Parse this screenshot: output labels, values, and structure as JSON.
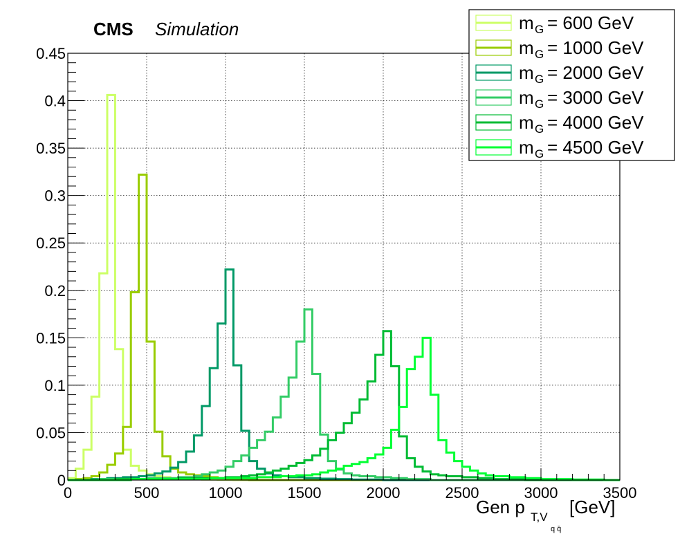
{
  "header": {
    "experiment": "CMS",
    "tag": "Simulation"
  },
  "chart_data": {
    "type": "line",
    "style": "histogram-step",
    "xlabel_main": "Gen p",
    "xlabel_sub": "T,V",
    "xlabel_subsub": "q q̄",
    "xlabel_unit": "[GeV]",
    "xlim": [
      0,
      3500
    ],
    "ylim": [
      0,
      0.45
    ],
    "grid": true,
    "legend_position": "top-right",
    "bin_width": 50,
    "x_ticks": [
      "0",
      "500",
      "1000",
      "1500",
      "2000",
      "2500",
      "3000",
      "3500"
    ],
    "x_tick_values": [
      0,
      500,
      1000,
      1500,
      2000,
      2500,
      3000,
      3500
    ],
    "y_ticks": [
      "0",
      "0.05",
      "0.1",
      "0.15",
      "0.2",
      "0.25",
      "0.3",
      "0.35",
      "0.4",
      "0.45"
    ],
    "y_tick_values": [
      0,
      0.05,
      0.1,
      0.15,
      0.2,
      0.25,
      0.3,
      0.35,
      0.4,
      0.45
    ],
    "series": [
      {
        "name": "= 600 GeV",
        "color": "#ccff66",
        "bins": [
          [
            0,
            0.002
          ],
          [
            50,
            0.012
          ],
          [
            100,
            0.032
          ],
          [
            150,
            0.088
          ],
          [
            200,
            0.218
          ],
          [
            250,
            0.406
          ],
          [
            300,
            0.138
          ],
          [
            350,
            0.032
          ],
          [
            400,
            0.015
          ],
          [
            450,
            0.01
          ],
          [
            500,
            0.006
          ],
          [
            550,
            0.004
          ],
          [
            600,
            0.003
          ],
          [
            650,
            0.002
          ],
          [
            700,
            0.0015
          ],
          [
            750,
            0.001
          ],
          [
            800,
            0.001
          ],
          [
            850,
            0.0005
          ],
          [
            900,
            0.0005
          ],
          [
            950,
            0.0003
          ],
          [
            1000,
            0.0002
          ],
          [
            1050,
            0
          ]
        ]
      },
      {
        "name": "= 1000 GeV",
        "color": "#99cc00",
        "bins": [
          [
            0,
            0
          ],
          [
            50,
            0.001
          ],
          [
            100,
            0.002
          ],
          [
            150,
            0.004
          ],
          [
            200,
            0.008
          ],
          [
            250,
            0.016
          ],
          [
            300,
            0.028
          ],
          [
            350,
            0.056
          ],
          [
            400,
            0.198
          ],
          [
            450,
            0.322
          ],
          [
            500,
            0.146
          ],
          [
            550,
            0.051
          ],
          [
            600,
            0.025
          ],
          [
            650,
            0.012
          ],
          [
            700,
            0.008
          ],
          [
            750,
            0.006
          ],
          [
            800,
            0.005
          ],
          [
            850,
            0.004
          ],
          [
            900,
            0.003
          ],
          [
            950,
            0.002
          ],
          [
            1000,
            0.0015
          ],
          [
            1050,
            0.001
          ],
          [
            1100,
            0.0005
          ],
          [
            1150,
            0
          ]
        ]
      },
      {
        "name": "= 2000 GeV",
        "color": "#009966",
        "bins": [
          [
            0,
            0
          ],
          [
            150,
            0.001
          ],
          [
            250,
            0.002
          ],
          [
            350,
            0.003
          ],
          [
            450,
            0.004
          ],
          [
            500,
            0.005
          ],
          [
            550,
            0.007
          ],
          [
            600,
            0.009
          ],
          [
            650,
            0.013
          ],
          [
            700,
            0.019
          ],
          [
            750,
            0.03
          ],
          [
            800,
            0.047
          ],
          [
            850,
            0.078
          ],
          [
            900,
            0.118
          ],
          [
            950,
            0.165
          ],
          [
            1000,
            0.222
          ],
          [
            1050,
            0.121
          ],
          [
            1100,
            0.052
          ],
          [
            1150,
            0.02
          ],
          [
            1200,
            0.012
          ],
          [
            1250,
            0.007
          ],
          [
            1300,
            0.005
          ],
          [
            1350,
            0.004
          ],
          [
            1400,
            0.003
          ],
          [
            1500,
            0.002
          ],
          [
            1600,
            0.0015
          ],
          [
            1700,
            0.001
          ],
          [
            1800,
            0.0005
          ],
          [
            2000,
            0
          ]
        ]
      },
      {
        "name": "= 3000 GeV",
        "color": "#33cc66",
        "bins": [
          [
            0,
            0
          ],
          [
            200,
            0.001
          ],
          [
            500,
            0.002
          ],
          [
            700,
            0.003
          ],
          [
            800,
            0.004
          ],
          [
            850,
            0.006
          ],
          [
            900,
            0.008
          ],
          [
            950,
            0.01
          ],
          [
            1000,
            0.014
          ],
          [
            1050,
            0.02
          ],
          [
            1100,
            0.026
          ],
          [
            1150,
            0.034
          ],
          [
            1200,
            0.042
          ],
          [
            1250,
            0.051
          ],
          [
            1300,
            0.066
          ],
          [
            1350,
            0.088
          ],
          [
            1400,
            0.108
          ],
          [
            1450,
            0.146
          ],
          [
            1500,
            0.18
          ],
          [
            1550,
            0.112
          ],
          [
            1600,
            0.048
          ],
          [
            1650,
            0.02
          ],
          [
            1700,
            0.011
          ],
          [
            1750,
            0.007
          ],
          [
            1800,
            0.005
          ],
          [
            1850,
            0.004
          ],
          [
            1950,
            0.003
          ],
          [
            2050,
            0.002
          ],
          [
            2150,
            0.001
          ],
          [
            2300,
            0
          ]
        ]
      },
      {
        "name": "= 4000 GeV",
        "color": "#00bb33",
        "bins": [
          [
            0,
            0
          ],
          [
            300,
            0.001
          ],
          [
            700,
            0.002
          ],
          [
            1000,
            0.003
          ],
          [
            1100,
            0.004
          ],
          [
            1150,
            0.005
          ],
          [
            1200,
            0.006
          ],
          [
            1250,
            0.008
          ],
          [
            1300,
            0.01
          ],
          [
            1350,
            0.012
          ],
          [
            1400,
            0.015
          ],
          [
            1450,
            0.018
          ],
          [
            1500,
            0.021
          ],
          [
            1550,
            0.026
          ],
          [
            1600,
            0.033
          ],
          [
            1650,
            0.042
          ],
          [
            1700,
            0.05
          ],
          [
            1750,
            0.06
          ],
          [
            1800,
            0.071
          ],
          [
            1850,
            0.085
          ],
          [
            1900,
            0.104
          ],
          [
            1950,
            0.132
          ],
          [
            2000,
            0.157
          ],
          [
            2050,
            0.12
          ],
          [
            2100,
            0.046
          ],
          [
            2150,
            0.023
          ],
          [
            2200,
            0.014
          ],
          [
            2250,
            0.009
          ],
          [
            2300,
            0.006
          ],
          [
            2350,
            0.005
          ],
          [
            2400,
            0.004
          ],
          [
            2500,
            0.003
          ],
          [
            2600,
            0.002
          ],
          [
            2700,
            0.001
          ],
          [
            2900,
            0
          ]
        ]
      },
      {
        "name": "= 4500 GeV",
        "color": "#00ff33",
        "bins": [
          [
            0,
            0
          ],
          [
            400,
            0.001
          ],
          [
            900,
            0.002
          ],
          [
            1200,
            0.003
          ],
          [
            1350,
            0.004
          ],
          [
            1450,
            0.005
          ],
          [
            1550,
            0.006
          ],
          [
            1600,
            0.008
          ],
          [
            1650,
            0.01
          ],
          [
            1700,
            0.012
          ],
          [
            1750,
            0.015
          ],
          [
            1800,
            0.017
          ],
          [
            1850,
            0.019
          ],
          [
            1900,
            0.023
          ],
          [
            1950,
            0.027
          ],
          [
            2000,
            0.034
          ],
          [
            2050,
            0.053
          ],
          [
            2100,
            0.077
          ],
          [
            2150,
            0.117
          ],
          [
            2200,
            0.13
          ],
          [
            2250,
            0.15
          ],
          [
            2300,
            0.09
          ],
          [
            2350,
            0.042
          ],
          [
            2400,
            0.029
          ],
          [
            2450,
            0.02
          ],
          [
            2500,
            0.014
          ],
          [
            2550,
            0.01
          ],
          [
            2600,
            0.007
          ],
          [
            2650,
            0.005
          ],
          [
            2700,
            0.004
          ],
          [
            2800,
            0.003
          ],
          [
            2900,
            0.002
          ],
          [
            3000,
            0.001
          ],
          [
            3200,
            0.0005
          ],
          [
            3400,
            0
          ]
        ]
      }
    ]
  }
}
